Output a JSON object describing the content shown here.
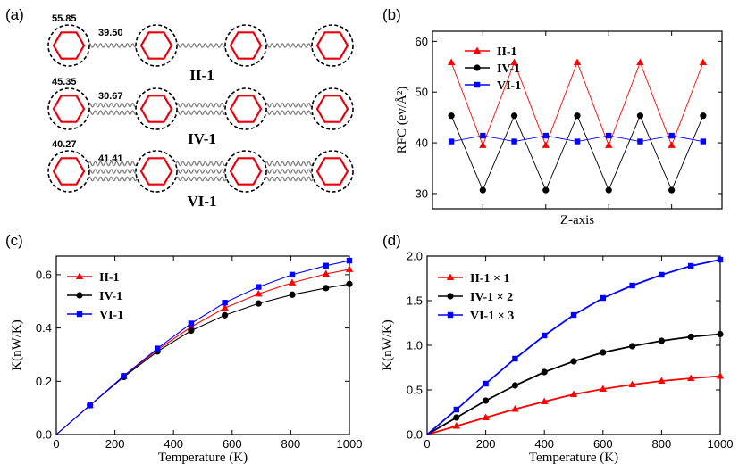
{
  "panels": {
    "a": {
      "label": "(a)",
      "chains": [
        {
          "name": "II-1",
          "bond_value": "39.50",
          "node_value": "55.85",
          "springs": 1
        },
        {
          "name": "IV-1",
          "bond_value": "30.67",
          "node_value": "45.35",
          "springs": 2
        },
        {
          "name": "VI-1",
          "bond_value": "41.41",
          "node_value": "40.27",
          "springs": 3
        }
      ]
    }
  },
  "colors": {
    "II-1": "#ff0000",
    "IV-1": "#000000",
    "VI-1": "#0000ff",
    "hexagon": "#e8000b",
    "spring": "#808080"
  },
  "chart_data": [
    {
      "panel": "(b)",
      "type": "line",
      "title": "",
      "xlabel": "Z-axis",
      "ylabel": "RFC (ev/Å²)",
      "ylim": [
        27,
        62
      ],
      "yticks": [
        30,
        40,
        50,
        60
      ],
      "x": [
        1,
        2,
        3,
        4,
        5,
        6,
        7,
        8,
        9
      ],
      "series": [
        {
          "name": "II-1",
          "color": "#ff0000",
          "marker": "triangle",
          "values": [
            55.85,
            39.5,
            55.85,
            39.5,
            55.85,
            39.5,
            55.85,
            39.5,
            55.85
          ]
        },
        {
          "name": "IV-1",
          "color": "#000000",
          "marker": "circle",
          "values": [
            45.35,
            30.67,
            45.35,
            30.67,
            45.35,
            30.67,
            45.35,
            30.67,
            45.35
          ]
        },
        {
          "name": "VI-1",
          "color": "#0000ff",
          "marker": "square",
          "values": [
            40.27,
            41.41,
            40.27,
            41.41,
            40.27,
            41.41,
            40.27,
            41.41,
            40.27
          ]
        }
      ],
      "legend": "top-left"
    },
    {
      "panel": "(c)",
      "type": "line",
      "title": "",
      "xlabel": "Temperature (K)",
      "ylabel": "K(nW/K)",
      "xlim": [
        0,
        1000
      ],
      "ylim": [
        0,
        0.67
      ],
      "xticks": [
        0,
        200,
        400,
        600,
        800,
        1000
      ],
      "yticks": [
        0.0,
        0.2,
        0.4,
        0.6
      ],
      "series": [
        {
          "name": "II-1",
          "color": "#ff0000",
          "marker": "triangle",
          "x": [
            0,
            115,
            230,
            345,
            460,
            575,
            690,
            805,
            920,
            1000
          ],
          "values": [
            0,
            0.11,
            0.218,
            0.318,
            0.404,
            0.475,
            0.528,
            0.57,
            0.603,
            0.62
          ]
        },
        {
          "name": "IV-1",
          "color": "#000000",
          "marker": "circle",
          "x": [
            0,
            115,
            230,
            345,
            460,
            575,
            690,
            805,
            920,
            1000
          ],
          "values": [
            0,
            0.11,
            0.216,
            0.312,
            0.39,
            0.448,
            0.492,
            0.525,
            0.55,
            0.565
          ]
        },
        {
          "name": "VI-1",
          "color": "#0000ff",
          "marker": "square",
          "x": [
            0,
            115,
            230,
            345,
            460,
            575,
            690,
            805,
            920,
            1000
          ],
          "values": [
            0,
            0.11,
            0.22,
            0.323,
            0.417,
            0.495,
            0.554,
            0.6,
            0.634,
            0.653
          ]
        }
      ],
      "legend": "top-left"
    },
    {
      "panel": "(d)",
      "type": "line",
      "title": "",
      "xlabel": "Temperature (K)",
      "ylabel": "K(nW/K)",
      "xlim": [
        0,
        1000
      ],
      "ylim": [
        0,
        2.0
      ],
      "xticks": [
        0,
        200,
        400,
        600,
        800,
        1000
      ],
      "yticks": [
        0.0,
        0.5,
        1.0,
        1.5,
        2.0
      ],
      "series": [
        {
          "name": "II-1 × 1",
          "color": "#ff0000",
          "marker": "triangle",
          "x": [
            0,
            100,
            200,
            300,
            400,
            500,
            600,
            700,
            800,
            900,
            1000
          ],
          "values": [
            0,
            0.095,
            0.19,
            0.285,
            0.37,
            0.45,
            0.51,
            0.56,
            0.6,
            0.63,
            0.655
          ]
        },
        {
          "name": "IV-1 × 2",
          "color": "#000000",
          "marker": "circle",
          "x": [
            0,
            100,
            200,
            300,
            400,
            500,
            600,
            700,
            800,
            900,
            1000
          ],
          "values": [
            0,
            0.19,
            0.38,
            0.55,
            0.7,
            0.82,
            0.92,
            0.99,
            1.05,
            1.095,
            1.125
          ]
        },
        {
          "name": "VI-1 × 3",
          "color": "#0000ff",
          "marker": "square",
          "x": [
            0,
            100,
            200,
            300,
            400,
            500,
            600,
            700,
            800,
            900,
            1000
          ],
          "values": [
            0,
            0.28,
            0.57,
            0.85,
            1.11,
            1.34,
            1.53,
            1.67,
            1.79,
            1.89,
            1.96
          ]
        }
      ],
      "legend": "top-left"
    }
  ]
}
